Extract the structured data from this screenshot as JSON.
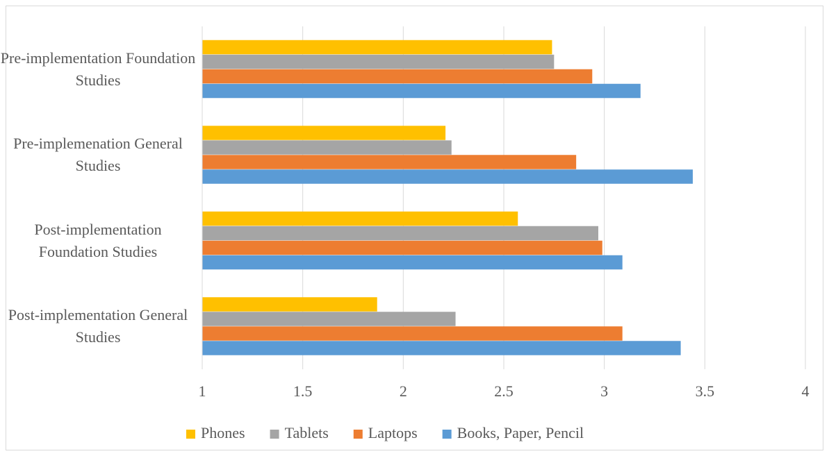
{
  "chart_data": {
    "type": "hbar",
    "categories": [
      "Pre-implementation Foundation Studies",
      "Pre-implemenation General Studies",
      "Post-implementation Foundation Studies",
      "Post-implementation General Studies"
    ],
    "series": [
      {
        "name": "Phones",
        "color": "#ffc000",
        "values": [
          2.74,
          2.21,
          2.57,
          1.87
        ]
      },
      {
        "name": "Tablets",
        "color": "#a5a5a5",
        "values": [
          2.75,
          2.24,
          2.97,
          2.26
        ]
      },
      {
        "name": "Laptops",
        "color": "#ed7d31",
        "values": [
          2.94,
          2.86,
          2.99,
          3.09
        ]
      },
      {
        "name": "Books, Paper, Pencil",
        "color": "#5b9bd5",
        "values": [
          3.18,
          3.44,
          3.09,
          3.38
        ]
      }
    ],
    "xlim": [
      1,
      4
    ],
    "xticks": [
      1,
      1.5,
      2,
      2.5,
      3,
      3.5,
      4
    ],
    "grid": true,
    "legend": "bottom"
  }
}
